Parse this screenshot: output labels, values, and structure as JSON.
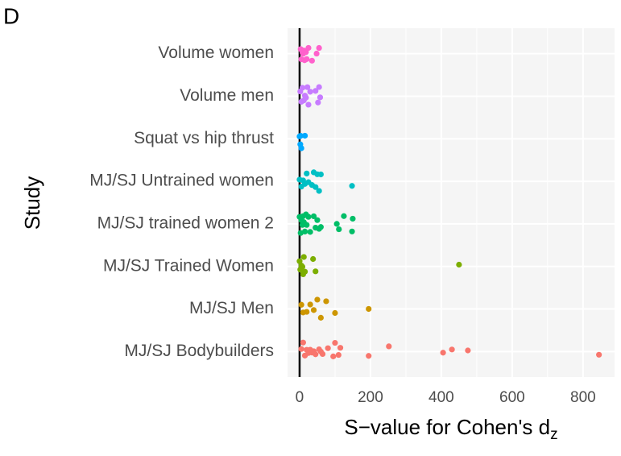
{
  "chart_data": {
    "type": "strip",
    "panel_tag": "D",
    "ylabel": "Study",
    "xlabel": {
      "text": "S−value for Cohen's d",
      "subscript": "z"
    },
    "xlim": [
      -34,
      889
    ],
    "xticks": [
      0,
      200,
      400,
      600,
      800
    ],
    "minor_xticks": [
      100,
      300,
      500,
      700
    ],
    "vline": 0,
    "grid": true,
    "series": [
      {
        "name": "MJ/SJ Bodybuilders",
        "color": "#F8766D",
        "values": [
          5,
          10,
          15,
          20,
          25,
          30,
          35,
          40,
          45,
          55,
          60,
          65,
          80,
          95,
          100,
          110,
          115,
          195,
          252,
          405,
          430,
          475,
          845
        ]
      },
      {
        "name": "MJ/SJ Men",
        "color": "#CD9600",
        "values": [
          5,
          10,
          20,
          30,
          40,
          50,
          60,
          75,
          100,
          195
        ]
      },
      {
        "name": "MJ/SJ Trained Women",
        "color": "#7CAE00",
        "values": [
          0,
          2,
          5,
          8,
          10,
          12,
          15,
          38,
          45,
          450
        ]
      },
      {
        "name": "MJ/SJ trained women 2",
        "color": "#00BE67",
        "values": [
          0,
          3,
          5,
          8,
          10,
          12,
          15,
          18,
          20,
          25,
          30,
          40,
          45,
          50,
          55,
          60,
          105,
          111,
          125,
          148,
          150
        ]
      },
      {
        "name": "MJ/SJ Untrained women",
        "color": "#00BFC4",
        "values": [
          0,
          5,
          10,
          15,
          20,
          25,
          35,
          40,
          45,
          50,
          55,
          60,
          148
        ]
      },
      {
        "name": "Squat vs hip thrust",
        "color": "#00A9FF",
        "values": [
          0,
          2,
          3,
          5,
          15
        ]
      },
      {
        "name": "Volume men",
        "color": "#C77CFF",
        "values": [
          2,
          5,
          8,
          12,
          15,
          18,
          22,
          25,
          30,
          45,
          52,
          55,
          58
        ]
      },
      {
        "name": "Volume women",
        "color": "#FF61CC",
        "values": [
          3,
          5,
          8,
          10,
          12,
          14,
          18,
          20,
          25,
          35,
          48,
          55
        ]
      }
    ]
  }
}
